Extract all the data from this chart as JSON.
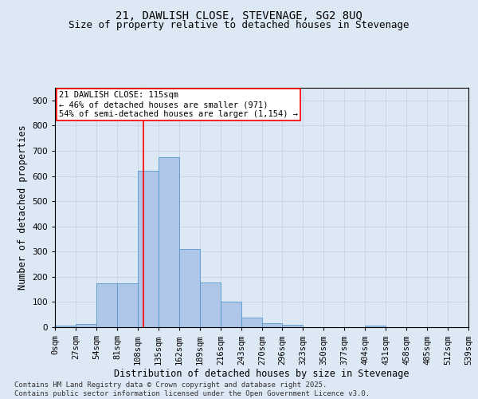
{
  "title_line1": "21, DAWLISH CLOSE, STEVENAGE, SG2 8UQ",
  "title_line2": "Size of property relative to detached houses in Stevenage",
  "xlabel": "Distribution of detached houses by size in Stevenage",
  "ylabel": "Number of detached properties",
  "footer_line1": "Contains HM Land Registry data © Crown copyright and database right 2025.",
  "footer_line2": "Contains public sector information licensed under the Open Government Licence v3.0.",
  "annotation_line1": "21 DAWLISH CLOSE: 115sqm",
  "annotation_line2": "← 46% of detached houses are smaller (971)",
  "annotation_line3": "54% of semi-detached houses are larger (1,154) →",
  "bar_heights": [
    7,
    13,
    175,
    175,
    620,
    675,
    310,
    178,
    100,
    38,
    15,
    10,
    0,
    0,
    0,
    5,
    0,
    0,
    0,
    0
  ],
  "bin_edges": [
    0,
    27,
    54,
    81,
    108,
    135,
    162,
    189,
    216,
    243,
    270,
    296,
    323,
    350,
    377,
    404,
    431,
    458,
    485,
    512,
    539
  ],
  "tick_labels": [
    "0sqm",
    "27sqm",
    "54sqm",
    "81sqm",
    "108sqm",
    "135sqm",
    "162sqm",
    "189sqm",
    "216sqm",
    "243sqm",
    "270sqm",
    "296sqm",
    "323sqm",
    "350sqm",
    "377sqm",
    "404sqm",
    "431sqm",
    "458sqm",
    "485sqm",
    "512sqm",
    "539sqm"
  ],
  "bar_color": "#aec6e8",
  "bar_edge_color": "#5599cc",
  "vline_x": 115,
  "vline_color": "red",
  "annotation_box_color": "red",
  "ylim": [
    0,
    950
  ],
  "yticks": [
    0,
    100,
    200,
    300,
    400,
    500,
    600,
    700,
    800,
    900
  ],
  "grid_color": "#c8d4e8",
  "background_color": "#dde8f5",
  "title1_fontsize": 10,
  "title2_fontsize": 9,
  "axis_label_fontsize": 8.5,
  "tick_fontsize": 7.5,
  "annotation_fontsize": 7.5,
  "footer_fontsize": 6.5
}
